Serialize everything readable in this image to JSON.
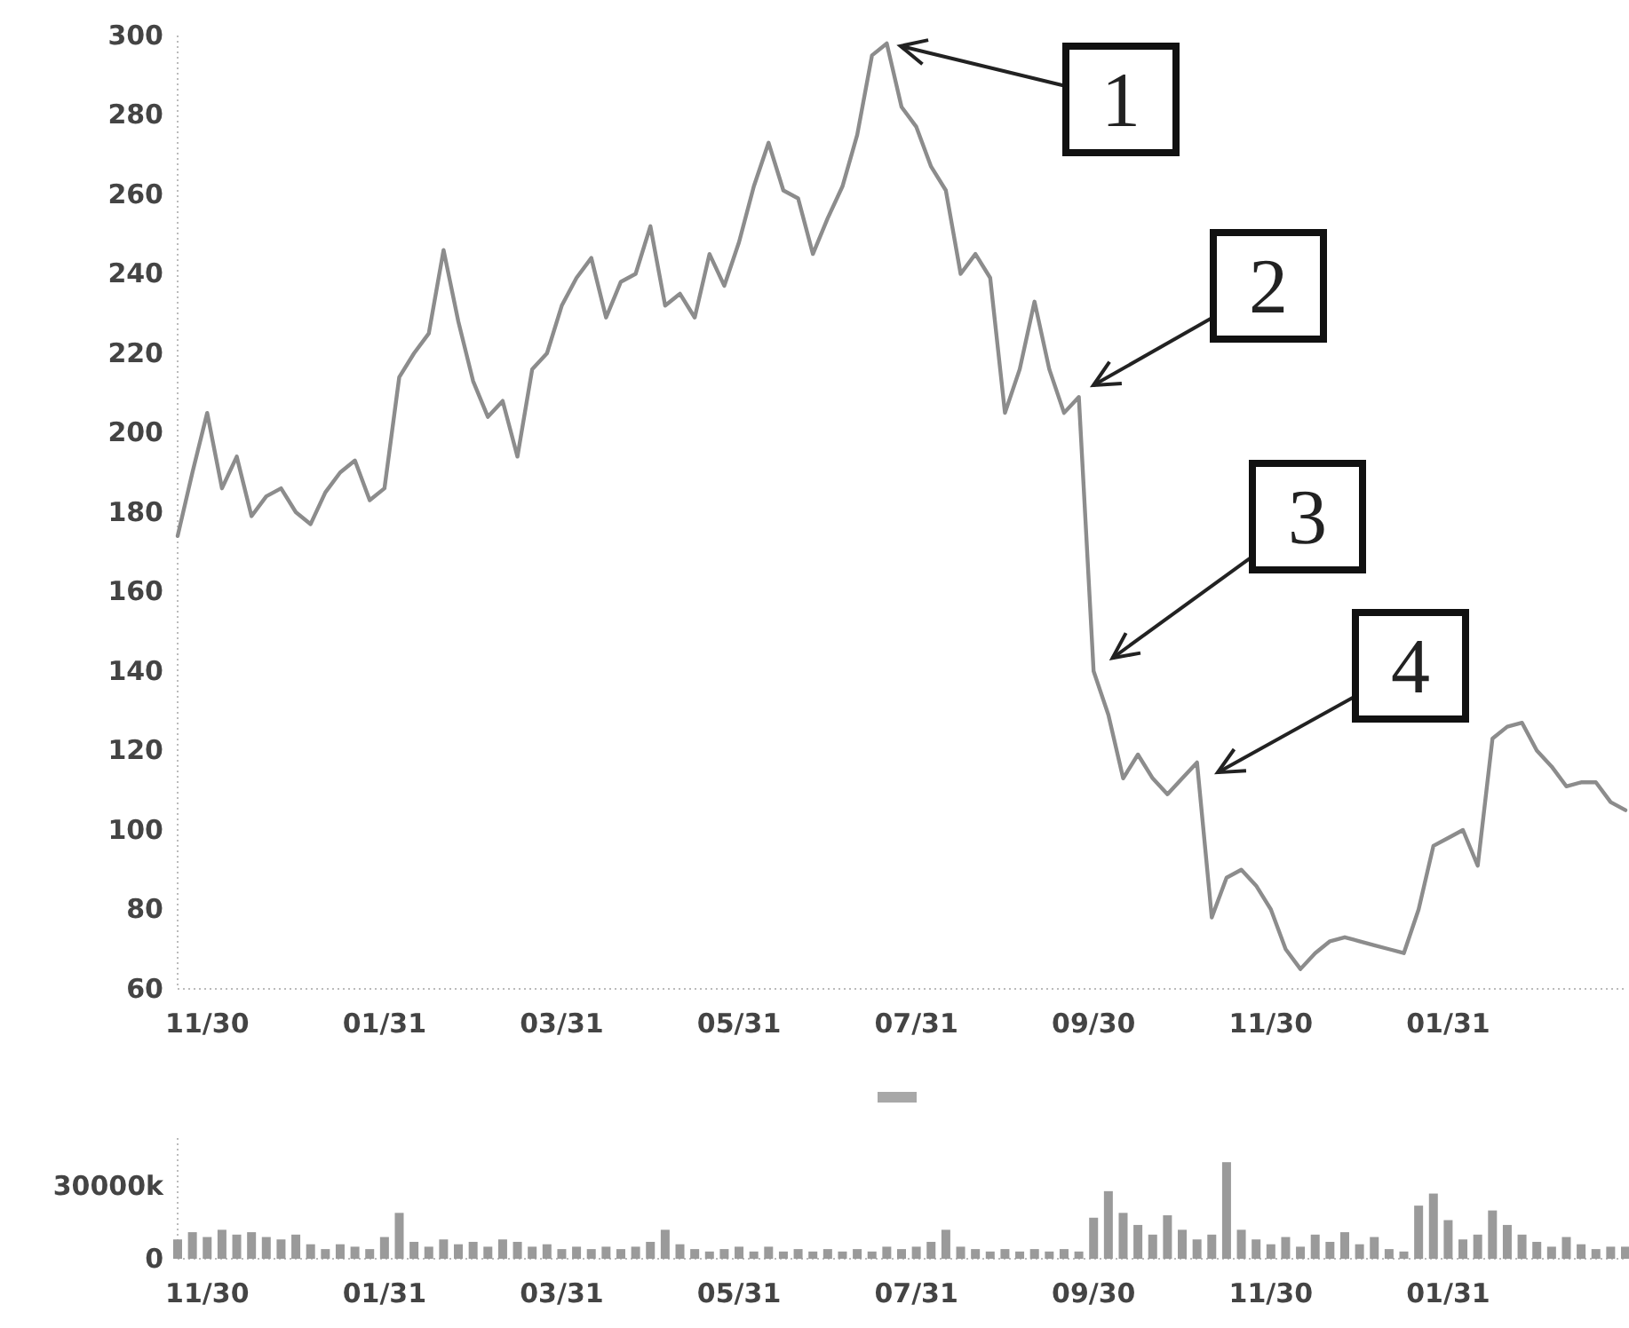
{
  "chart_data": [
    {
      "type": "line",
      "color": "#8c8c8c",
      "categories": [
        null,
        null,
        "11/30",
        null,
        null,
        null,
        null,
        null,
        null,
        null,
        null,
        null,
        null,
        null,
        "01/31",
        null,
        null,
        null,
        null,
        null,
        null,
        null,
        null,
        null,
        null,
        null,
        "03/31",
        null,
        null,
        null,
        null,
        null,
        null,
        null,
        null,
        null,
        null,
        null,
        "05/31",
        null,
        null,
        null,
        null,
        null,
        null,
        null,
        null,
        null,
        null,
        null,
        "07/31",
        null,
        null,
        null,
        null,
        null,
        null,
        null,
        null,
        null,
        null,
        null,
        "09/30",
        null,
        null,
        null,
        null,
        null,
        null,
        null,
        null,
        null,
        null,
        null,
        "11/30",
        null,
        null,
        null,
        null,
        null,
        null,
        null,
        null,
        null,
        null,
        null,
        "01/31",
        null,
        null,
        null,
        null,
        null,
        null,
        null,
        null,
        null,
        null,
        null,
        null
      ],
      "values": [
        174,
        190,
        205,
        186,
        194,
        179,
        184,
        186,
        180,
        177,
        185,
        190,
        193,
        183,
        186,
        214,
        220,
        225,
        246,
        228,
        213,
        204,
        208,
        194,
        216,
        220,
        232,
        239,
        244,
        229,
        238,
        240,
        252,
        232,
        235,
        229,
        245,
        237,
        248,
        262,
        273,
        261,
        259,
        245,
        254,
        262,
        275,
        295,
        298,
        282,
        277,
        267,
        261,
        240,
        245,
        239,
        205,
        216,
        233,
        216,
        205,
        209,
        140,
        129,
        113,
        119,
        113,
        109,
        113,
        117,
        78,
        88,
        90,
        86,
        80,
        70,
        65,
        69,
        72,
        73,
        72,
        71,
        70,
        69,
        80,
        96,
        98,
        100,
        91,
        123,
        126,
        127,
        120,
        116,
        111,
        112,
        112,
        107,
        105
      ],
      "ylim": [
        60,
        300
      ],
      "yticks": [
        60,
        80,
        100,
        120,
        140,
        160,
        180,
        200,
        220,
        240,
        260,
        280,
        300
      ],
      "annotations": [
        "1",
        "2",
        "3",
        "4"
      ]
    },
    {
      "type": "bar",
      "color": "#9a9a9a",
      "categories": [
        null,
        null,
        "11/30",
        null,
        null,
        null,
        null,
        null,
        null,
        null,
        null,
        null,
        null,
        null,
        "01/31",
        null,
        null,
        null,
        null,
        null,
        null,
        null,
        null,
        null,
        null,
        null,
        "03/31",
        null,
        null,
        null,
        null,
        null,
        null,
        null,
        null,
        null,
        null,
        null,
        "05/31",
        null,
        null,
        null,
        null,
        null,
        null,
        null,
        null,
        null,
        null,
        null,
        "07/31",
        null,
        null,
        null,
        null,
        null,
        null,
        null,
        null,
        null,
        null,
        null,
        "09/30",
        null,
        null,
        null,
        null,
        null,
        null,
        null,
        null,
        null,
        null,
        null,
        "11/30",
        null,
        null,
        null,
        null,
        null,
        null,
        null,
        null,
        null,
        null,
        null,
        "01/31",
        null,
        null,
        null,
        null,
        null,
        null,
        null,
        null,
        null,
        null,
        null,
        null
      ],
      "values": [
        8000,
        11000,
        9000,
        12000,
        10000,
        11000,
        9000,
        8000,
        10000,
        6000,
        4000,
        6000,
        5000,
        4000,
        9000,
        19000,
        7000,
        5000,
        8000,
        6000,
        7000,
        5000,
        8000,
        7000,
        5000,
        6000,
        4000,
        5000,
        4000,
        5000,
        4000,
        5000,
        7000,
        12000,
        6000,
        4000,
        3000,
        4000,
        5000,
        3000,
        5000,
        3000,
        4000,
        3000,
        4000,
        3000,
        4000,
        3000,
        5000,
        4000,
        5000,
        7000,
        12000,
        5000,
        4000,
        3000,
        4000,
        3000,
        4000,
        3000,
        4000,
        3000,
        17000,
        28000,
        19000,
        14000,
        10000,
        18000,
        12000,
        8000,
        10000,
        40000,
        12000,
        8000,
        6000,
        9000,
        5000,
        10000,
        7000,
        11000,
        6000,
        9000,
        4000,
        3000,
        22000,
        27000,
        16000,
        8000,
        10000,
        20000,
        14000,
        10000,
        7000,
        5000,
        9000,
        6000,
        4000,
        5000,
        5000
      ],
      "ylim": [
        0,
        50000
      ],
      "yticks": [
        0,
        {
          "value": 30000,
          "label": "30000k"
        }
      ]
    }
  ]
}
